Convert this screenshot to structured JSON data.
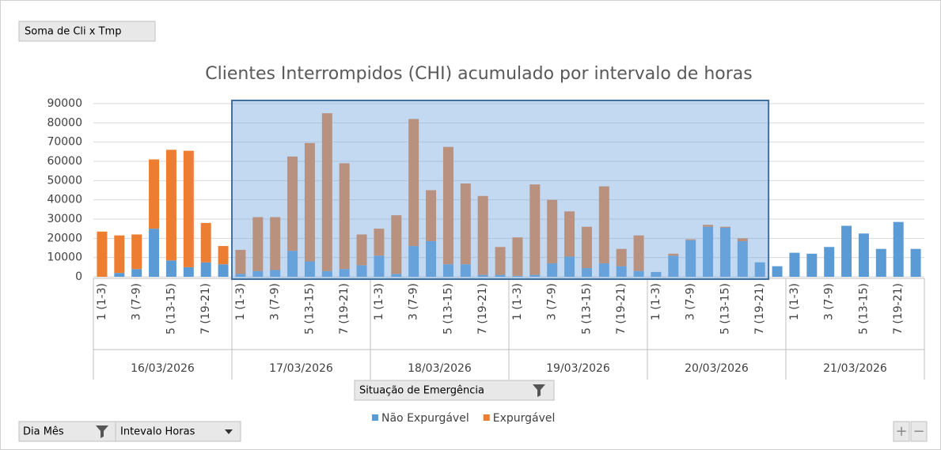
{
  "field_buttons": {
    "value_field": "Soma de Cli x Tmp",
    "filter": "Situação de Emergência",
    "axis_1": "Dia Mês",
    "axis_2": "Intevalo Horas",
    "expand": "+",
    "collapse": "−"
  },
  "chart_data": {
    "type": "bar",
    "stacked": true,
    "title": "Clientes Interrompidos (CHI) acumulado por intervalo de horas",
    "groups": [
      "16/03/2026",
      "17/03/2026",
      "18/03/2026",
      "19/03/2026",
      "20/03/2026",
      "21/03/2026"
    ],
    "categories": [
      "1 (1-3)",
      null,
      "3 (7-9)",
      null,
      "5 (13-15)",
      null,
      "7 (19-21)",
      null,
      "1 (1-3)",
      null,
      "3 (7-9)",
      null,
      "5 (13-15)",
      null,
      "7 (19-21)",
      null,
      "1 (1-3)",
      null,
      "3 (7-9)",
      null,
      "5 (13-15)",
      null,
      "7 (19-21)",
      null,
      "1 (1-3)",
      null,
      "3 (7-9)",
      null,
      "5 (13-15)",
      null,
      "7 (19-21)",
      null,
      "1 (1-3)",
      null,
      "3 (7-9)",
      null,
      "5 (13-15)",
      null,
      "7 (19-21)",
      null,
      "1 (1-3)",
      null,
      "3 (7-9)",
      null,
      "5 (13-15)",
      null,
      "7 (19-21)",
      null
    ],
    "series": [
      {
        "name": "Não Expurgável",
        "color": "#5b9bd5",
        "values": [
          0,
          2000,
          4000,
          25000,
          8500,
          5000,
          7500,
          6500,
          1500,
          3000,
          3500,
          13500,
          8000,
          3000,
          4000,
          6000,
          11000,
          1500,
          16000,
          18500,
          6500,
          6500,
          1000,
          1000,
          500,
          1000,
          7000,
          10500,
          4500,
          7000,
          5500,
          3000,
          2500,
          11000,
          19000,
          26000,
          25500,
          18500,
          7500,
          5500,
          12500,
          12000,
          15500,
          26500,
          22500,
          14500,
          28500,
          14500
        ]
      },
      {
        "name": "Expurgável",
        "color": "#ed7d31",
        "values": [
          23500,
          19500,
          18000,
          36000,
          57500,
          60500,
          20500,
          9500,
          12500,
          28000,
          27500,
          49000,
          61500,
          82000,
          55000,
          16000,
          14000,
          30500,
          66000,
          26500,
          61000,
          42000,
          41000,
          14500,
          20000,
          47000,
          33000,
          23500,
          21500,
          40000,
          9000,
          18500,
          0,
          1000,
          500,
          1000,
          500,
          1500,
          0,
          0,
          0,
          0,
          0,
          0,
          0,
          0,
          0,
          0
        ]
      }
    ],
    "ylim": [
      0,
      90000
    ],
    "yticks": [
      0,
      10000,
      20000,
      30000,
      40000,
      50000,
      60000,
      70000,
      80000,
      90000
    ],
    "grid": true
  }
}
